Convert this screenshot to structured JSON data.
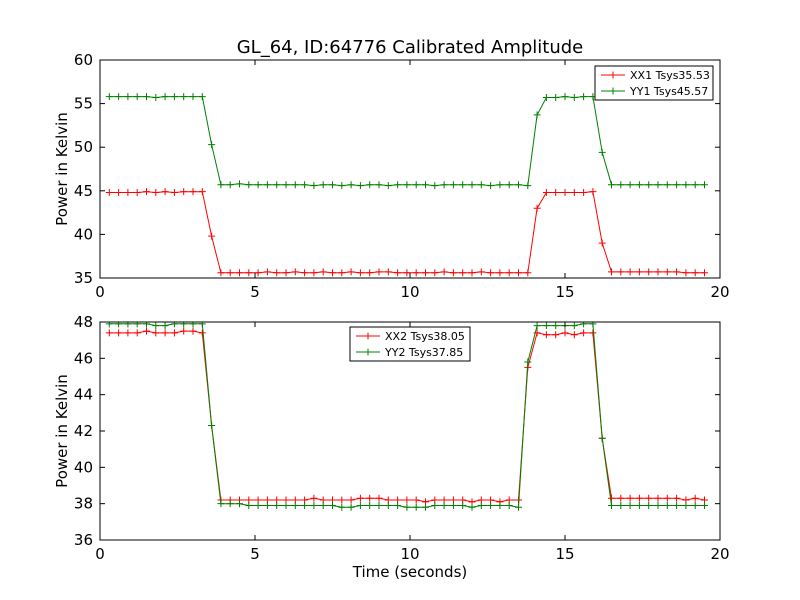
{
  "title": "GL_64, ID:64776 Calibrated Amplitude",
  "chart_data": [
    {
      "type": "line",
      "title": "GL_64, ID:64776 Calibrated Amplitude",
      "xlabel": "",
      "ylabel": "Power in Kelvin",
      "xlim": [
        0,
        20
      ],
      "ylim": [
        35,
        60
      ],
      "xticks": [
        0,
        5,
        10,
        15,
        20
      ],
      "yticks": [
        35,
        40,
        45,
        50,
        55,
        60
      ],
      "grid": false,
      "legend": "top-right",
      "x": [
        0.3,
        0.6,
        0.9,
        1.2,
        1.5,
        1.8,
        2.1,
        2.4,
        2.7,
        3.0,
        3.3,
        3.6,
        3.9,
        4.2,
        4.5,
        4.8,
        5.1,
        5.4,
        5.7,
        6.0,
        6.3,
        6.6,
        6.9,
        7.2,
        7.5,
        7.8,
        8.1,
        8.4,
        8.7,
        9.0,
        9.3,
        9.6,
        9.9,
        10.2,
        10.5,
        10.8,
        11.1,
        11.4,
        11.7,
        12.0,
        12.3,
        12.6,
        12.9,
        13.2,
        13.5,
        13.8,
        14.1,
        14.4,
        14.7,
        15.0,
        15.3,
        15.6,
        15.9,
        16.2,
        16.5,
        16.8,
        17.1,
        17.4,
        17.7,
        18.0,
        18.3,
        18.6,
        18.9,
        19.2,
        19.5
      ],
      "series": [
        {
          "name": "XX1 Tsys35.53",
          "color": "#ff0000",
          "values": [
            44.8,
            44.8,
            44.8,
            44.8,
            44.9,
            44.8,
            44.9,
            44.8,
            44.9,
            44.9,
            44.9,
            39.8,
            35.6,
            35.6,
            35.6,
            35.6,
            35.6,
            35.7,
            35.6,
            35.6,
            35.7,
            35.6,
            35.6,
            35.7,
            35.6,
            35.6,
            35.7,
            35.6,
            35.6,
            35.7,
            35.7,
            35.6,
            35.6,
            35.6,
            35.6,
            35.6,
            35.7,
            35.6,
            35.6,
            35.6,
            35.7,
            35.6,
            35.6,
            35.6,
            35.6,
            35.6,
            43.0,
            44.8,
            44.8,
            44.8,
            44.8,
            44.8,
            44.9,
            39.0,
            35.7,
            35.7,
            35.7,
            35.7,
            35.7,
            35.7,
            35.7,
            35.7,
            35.6,
            35.6,
            35.6
          ]
        },
        {
          "name": "YY1 Tsys45.57",
          "color": "#008000",
          "values": [
            55.8,
            55.8,
            55.8,
            55.8,
            55.8,
            55.7,
            55.8,
            55.8,
            55.8,
            55.8,
            55.8,
            50.3,
            45.7,
            45.7,
            45.8,
            45.7,
            45.7,
            45.7,
            45.7,
            45.7,
            45.7,
            45.7,
            45.6,
            45.7,
            45.7,
            45.6,
            45.7,
            45.6,
            45.7,
            45.7,
            45.6,
            45.7,
            45.7,
            45.7,
            45.7,
            45.6,
            45.7,
            45.7,
            45.7,
            45.7,
            45.7,
            45.6,
            45.7,
            45.7,
            45.7,
            45.6,
            53.7,
            55.7,
            55.7,
            55.8,
            55.7,
            55.8,
            55.8,
            49.4,
            45.7,
            45.7,
            45.7,
            45.7,
            45.7,
            45.7,
            45.7,
            45.7,
            45.7,
            45.7,
            45.7
          ]
        }
      ]
    },
    {
      "type": "line",
      "title": "",
      "xlabel": "Time (seconds)",
      "ylabel": "Power in Kelvin",
      "xlim": [
        0,
        20
      ],
      "ylim": [
        36,
        48
      ],
      "xticks": [
        0,
        5,
        10,
        15,
        20
      ],
      "yticks": [
        36,
        38,
        40,
        42,
        44,
        46,
        48
      ],
      "grid": false,
      "legend": "top-center",
      "x": [
        0.3,
        0.6,
        0.9,
        1.2,
        1.5,
        1.8,
        2.1,
        2.4,
        2.7,
        3.0,
        3.3,
        3.6,
        3.9,
        4.2,
        4.5,
        4.8,
        5.1,
        5.4,
        5.7,
        6.0,
        6.3,
        6.6,
        6.9,
        7.2,
        7.5,
        7.8,
        8.1,
        8.4,
        8.7,
        9.0,
        9.3,
        9.6,
        9.9,
        10.2,
        10.5,
        10.8,
        11.1,
        11.4,
        11.7,
        12.0,
        12.3,
        12.6,
        12.9,
        13.2,
        13.5,
        13.8,
        14.1,
        14.4,
        14.7,
        15.0,
        15.3,
        15.6,
        15.9,
        16.2,
        16.5,
        16.8,
        17.1,
        17.4,
        17.7,
        18.0,
        18.3,
        18.6,
        18.9,
        19.2,
        19.5
      ],
      "series": [
        {
          "name": "XX2 Tsys38.05",
          "color": "#ff0000",
          "values": [
            47.4,
            47.4,
            47.4,
            47.4,
            47.5,
            47.4,
            47.4,
            47.4,
            47.5,
            47.5,
            47.4,
            42.3,
            38.2,
            38.2,
            38.2,
            38.2,
            38.2,
            38.2,
            38.2,
            38.2,
            38.2,
            38.2,
            38.3,
            38.2,
            38.2,
            38.2,
            38.2,
            38.3,
            38.3,
            38.3,
            38.2,
            38.2,
            38.2,
            38.2,
            38.1,
            38.2,
            38.2,
            38.2,
            38.2,
            38.1,
            38.2,
            38.2,
            38.1,
            38.2,
            38.2,
            45.5,
            47.4,
            47.3,
            47.3,
            47.4,
            47.3,
            47.4,
            47.4,
            41.6,
            38.3,
            38.3,
            38.3,
            38.3,
            38.3,
            38.3,
            38.3,
            38.3,
            38.2,
            38.3,
            38.2
          ]
        },
        {
          "name": "YY2 Tsys37.85",
          "color": "#008000",
          "values": [
            47.9,
            47.9,
            47.9,
            47.9,
            47.9,
            47.8,
            47.8,
            47.9,
            47.9,
            47.9,
            47.9,
            42.3,
            38.0,
            38.0,
            38.0,
            37.9,
            37.9,
            37.9,
            37.9,
            37.9,
            37.9,
            37.9,
            37.9,
            37.9,
            37.9,
            37.8,
            37.8,
            37.9,
            37.9,
            37.9,
            37.9,
            37.9,
            37.8,
            37.8,
            37.8,
            37.9,
            37.9,
            37.9,
            37.9,
            37.8,
            37.9,
            37.9,
            37.9,
            37.9,
            37.8,
            45.8,
            47.8,
            47.8,
            47.8,
            47.8,
            47.8,
            47.9,
            47.9,
            41.6,
            37.9,
            37.9,
            37.9,
            37.9,
            37.9,
            37.9,
            37.9,
            37.9,
            37.9,
            37.9,
            37.9
          ]
        }
      ]
    }
  ]
}
